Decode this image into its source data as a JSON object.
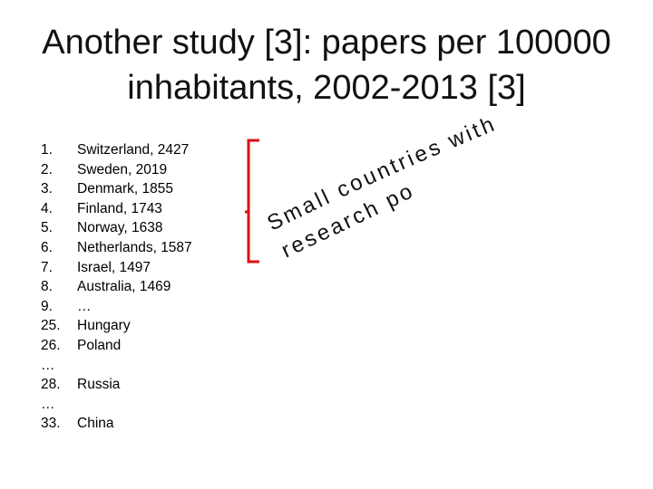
{
  "slide": {
    "title_line1": "Another study [3]: papers per 100000",
    "title_line2": "inhabitants, 2002-2013 [3]",
    "list": [
      {
        "num": "1.",
        "text": "Switzerland, 2427"
      },
      {
        "num": "2.",
        "text": "Sweden, 2019"
      },
      {
        "num": "3.",
        "text": "Denmark, 1855"
      },
      {
        "num": "4.",
        "text": "Finland, 1743"
      },
      {
        "num": "5.",
        "text": "Norway, 1638"
      },
      {
        "num": "6.",
        "text": "Netherlands, 1587"
      },
      {
        "num": "7.",
        "text": "Israel, 1497"
      },
      {
        "num": "8.",
        "text": "Australia, 1469"
      },
      {
        "num": "9.",
        "text": "…"
      },
      {
        "num": "25.",
        "text": "Hungary"
      },
      {
        "num": "26.",
        "text": "Poland"
      },
      {
        "num": "…",
        "text": ""
      },
      {
        "num": "28.",
        "text": "Russia"
      },
      {
        "num": "…",
        "text": ""
      },
      {
        "num": "33.",
        "text": "China"
      }
    ],
    "bracket_color": "#dd1111",
    "annotation_line1": "Small countries with good",
    "annotation_line2": "research policy"
  }
}
